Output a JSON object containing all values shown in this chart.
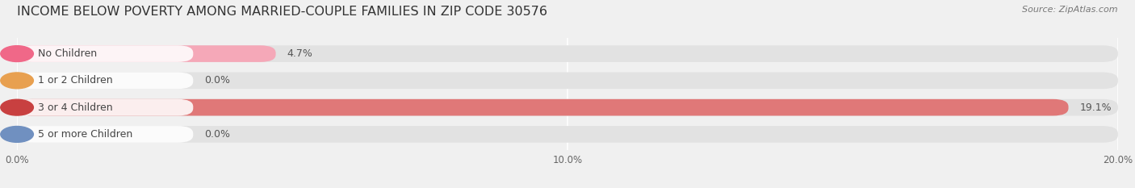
{
  "title": "INCOME BELOW POVERTY AMONG MARRIED-COUPLE FAMILIES IN ZIP CODE 30576",
  "source": "Source: ZipAtlas.com",
  "categories": [
    "No Children",
    "1 or 2 Children",
    "3 or 4 Children",
    "5 or more Children"
  ],
  "values": [
    4.7,
    0.0,
    19.1,
    0.0
  ],
  "bar_colors": [
    "#f5a8b8",
    "#f5c98a",
    "#e07878",
    "#a8c0e0"
  ],
  "dot_colors": [
    "#f06888",
    "#e8a050",
    "#c84040",
    "#7090c0"
  ],
  "label_bg_color": "#ffffff",
  "xlim": [
    0,
    20.0
  ],
  "xticks": [
    0.0,
    10.0,
    20.0
  ],
  "xticklabels": [
    "0.0%",
    "10.0%",
    "20.0%"
  ],
  "background_color": "#f0f0f0",
  "bar_background": "#e2e2e2",
  "bar_height": 0.62,
  "label_fontsize": 9.0,
  "title_fontsize": 11.5,
  "value_fontsize": 9.0,
  "source_fontsize": 8.0
}
